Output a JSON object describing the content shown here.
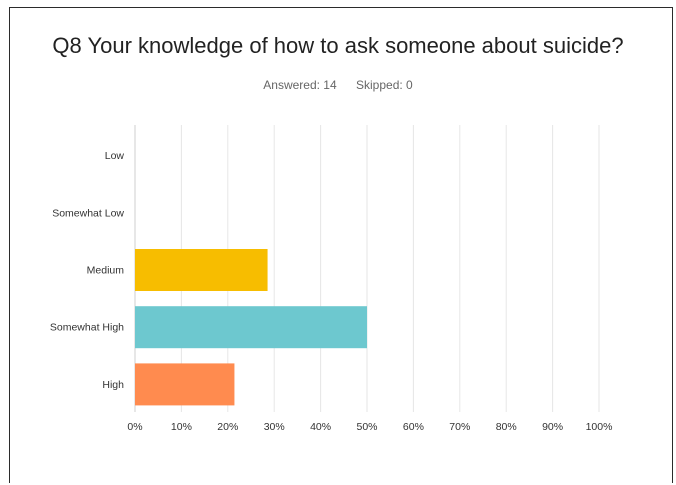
{
  "survey": {
    "question": "Q8 Your knowledge of how to ask someone about suicide?",
    "answered": "Answered: 14",
    "skipped": "Skipped: 0"
  },
  "chart_data": {
    "type": "bar",
    "orientation": "horizontal",
    "title": "Q8 Your knowledge of how to ask someone about suicide?",
    "categories": [
      "Low",
      "Somewhat Low",
      "Medium",
      "Somewhat High",
      "High"
    ],
    "values": [
      0,
      0,
      28.57,
      50.0,
      21.43
    ],
    "colors": [
      "#1fbfb8",
      "#6dc8cf",
      "#f7bd00",
      "#6dc8cf",
      "#ff8b4f"
    ],
    "x_ticks": [
      "0%",
      "10%",
      "20%",
      "30%",
      "40%",
      "50%",
      "60%",
      "70%",
      "80%",
      "90%",
      "100%"
    ],
    "xlim": [
      0,
      100
    ],
    "xlabel": "",
    "ylabel": "",
    "grid": true
  }
}
